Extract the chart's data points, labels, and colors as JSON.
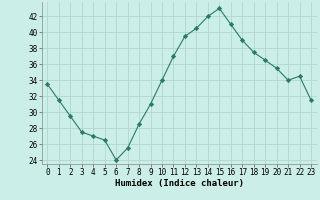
{
  "x": [
    0,
    1,
    2,
    3,
    4,
    5,
    6,
    7,
    8,
    9,
    10,
    11,
    12,
    13,
    14,
    15,
    16,
    17,
    18,
    19,
    20,
    21,
    22,
    23
  ],
  "y": [
    33.5,
    31.5,
    29.5,
    27.5,
    27.0,
    26.5,
    24.0,
    25.5,
    28.5,
    31.0,
    34.0,
    37.0,
    39.5,
    40.5,
    42.0,
    43.0,
    41.0,
    39.0,
    37.5,
    36.5,
    35.5,
    34.0,
    34.5,
    31.5
  ],
  "line_color": "#2a7a6a",
  "marker": "D",
  "marker_size": 2.2,
  "bg_color": "#cceee8",
  "grid_color": "#b0d8d0",
  "xlabel": "Humidex (Indice chaleur)",
  "ylim": [
    23.5,
    43.8
  ],
  "xlim": [
    -0.5,
    23.5
  ],
  "yticks": [
    24,
    26,
    28,
    30,
    32,
    34,
    36,
    38,
    40,
    42
  ],
  "xticks": [
    0,
    1,
    2,
    3,
    4,
    5,
    6,
    7,
    8,
    9,
    10,
    11,
    12,
    13,
    14,
    15,
    16,
    17,
    18,
    19,
    20,
    21,
    22,
    23
  ],
  "tick_fontsize": 5.5,
  "xlabel_fontsize": 6.5
}
